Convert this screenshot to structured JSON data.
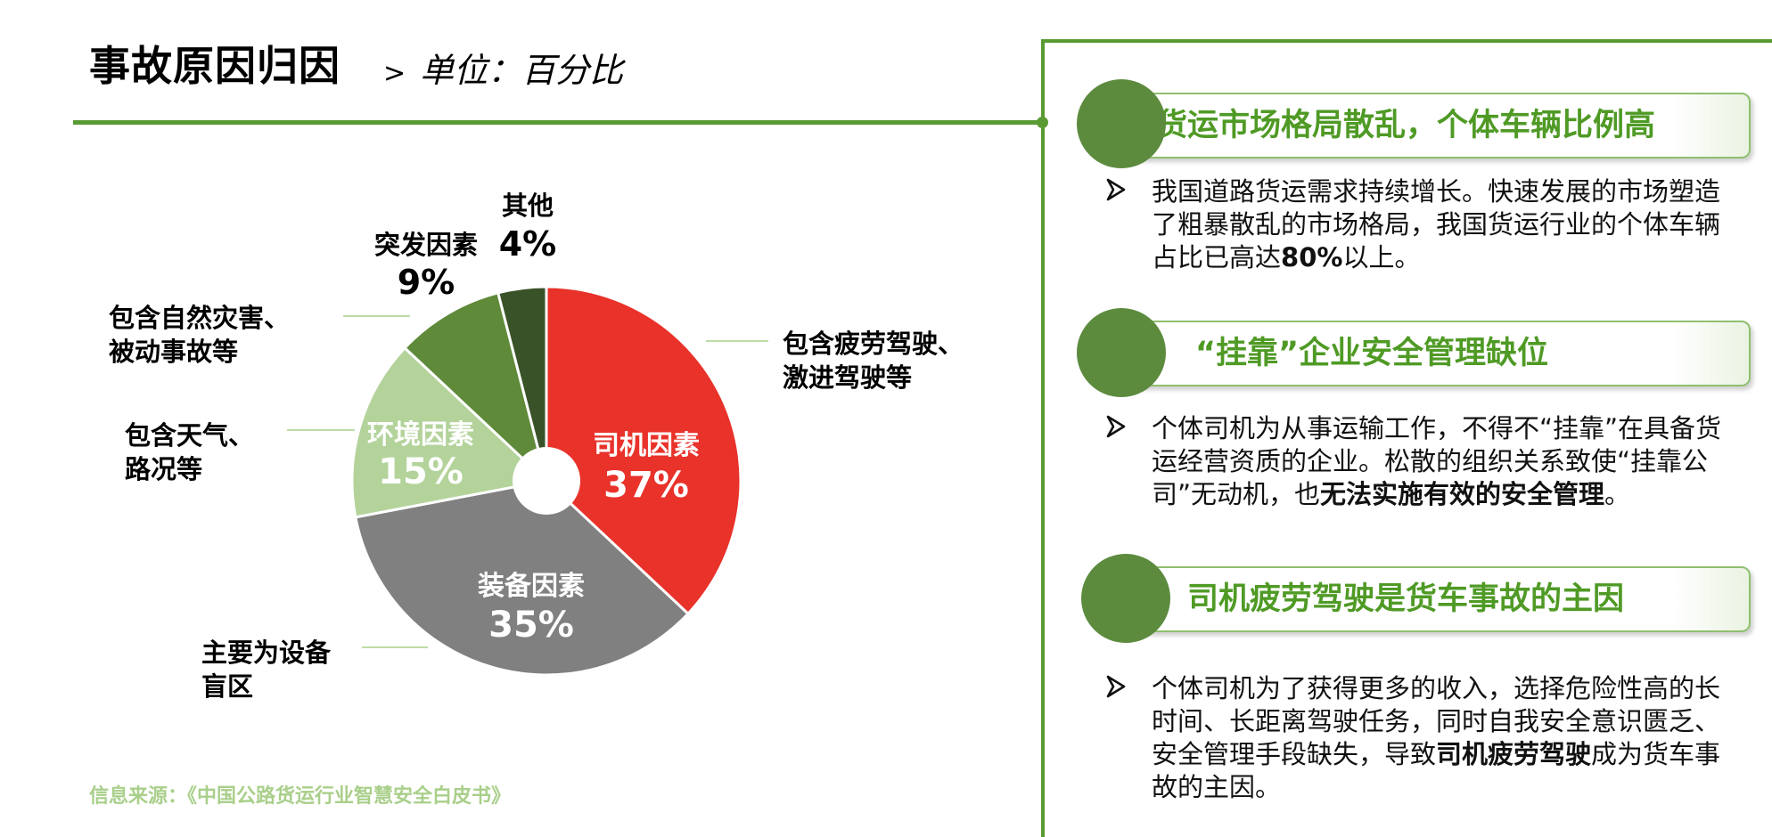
{
  "header": {
    "title": "事故原因归因",
    "unit_arrow": ">",
    "unit": "单位：百分比"
  },
  "chart_data": {
    "type": "pie",
    "donut_hole": true,
    "start": "top, clockwise",
    "slices": [
      {
        "name": "司机因素",
        "value": 37,
        "pct_label": "37%",
        "color": "#e8322a",
        "note": [
          "包含疲劳驾驶、",
          "激进驾驶等"
        ]
      },
      {
        "name": "装备因素",
        "value": 35,
        "pct_label": "35%",
        "color": "#808080",
        "note": [
          "主要为设备",
          "盲区"
        ]
      },
      {
        "name": "环境因素",
        "value": 15,
        "pct_label": "15%",
        "color": "#b3d39b",
        "note": [
          "包含天气、",
          "路况等"
        ]
      },
      {
        "name": "突发因素",
        "value": 9,
        "pct_label": "9%",
        "color": "#5f8a3a",
        "note": [
          "包含自然灾害、",
          "被动事故等"
        ]
      },
      {
        "name": "其他",
        "value": 4,
        "pct_label": "4%",
        "color": "#3a5228",
        "note": []
      }
    ]
  },
  "source": "信息来源：《中国公路货运行业智慧安全白皮书》",
  "colors": {
    "accent_green": "#5a9a32",
    "banner_text": "#4f9a25",
    "circle": "#5c8b3e",
    "source_text": "#a9cf8a"
  },
  "right_panel": {
    "items": [
      {
        "heading": "货运市场格局散乱，个体车辆比例高",
        "text_parts": [
          {
            "t": "我国道路货运需求持续增长。快速发展的市场塑造了粗暴散乱的市场格局，我国货运行业的个体车辆占比已高达",
            "b": false
          },
          {
            "t": "80%",
            "b": true
          },
          {
            "t": "以上。",
            "b": false
          }
        ]
      },
      {
        "heading": "“挂靠”企业安全管理缺位",
        "text_parts": [
          {
            "t": "个体司机为从事运输工作，不得不“挂靠”在具备货运经营资质的企业。松散的组织关系致使“挂靠公司”无动机，也",
            "b": false
          },
          {
            "t": "无法实施有效的安全管理",
            "b": true
          },
          {
            "t": "。",
            "b": false
          }
        ]
      },
      {
        "heading": "司机疲劳驾驶是货车事故的主因",
        "text_parts": [
          {
            "t": "个体司机为了获得更多的收入，选择危险性高的长时间、长距离驾驶任务，同时自我安全意识匮乏、安全管理手段缺失，导致",
            "b": false
          },
          {
            "t": "司机疲劳驾驶",
            "b": true
          },
          {
            "t": "成为货车事故的主因。",
            "b": false
          }
        ]
      }
    ]
  }
}
